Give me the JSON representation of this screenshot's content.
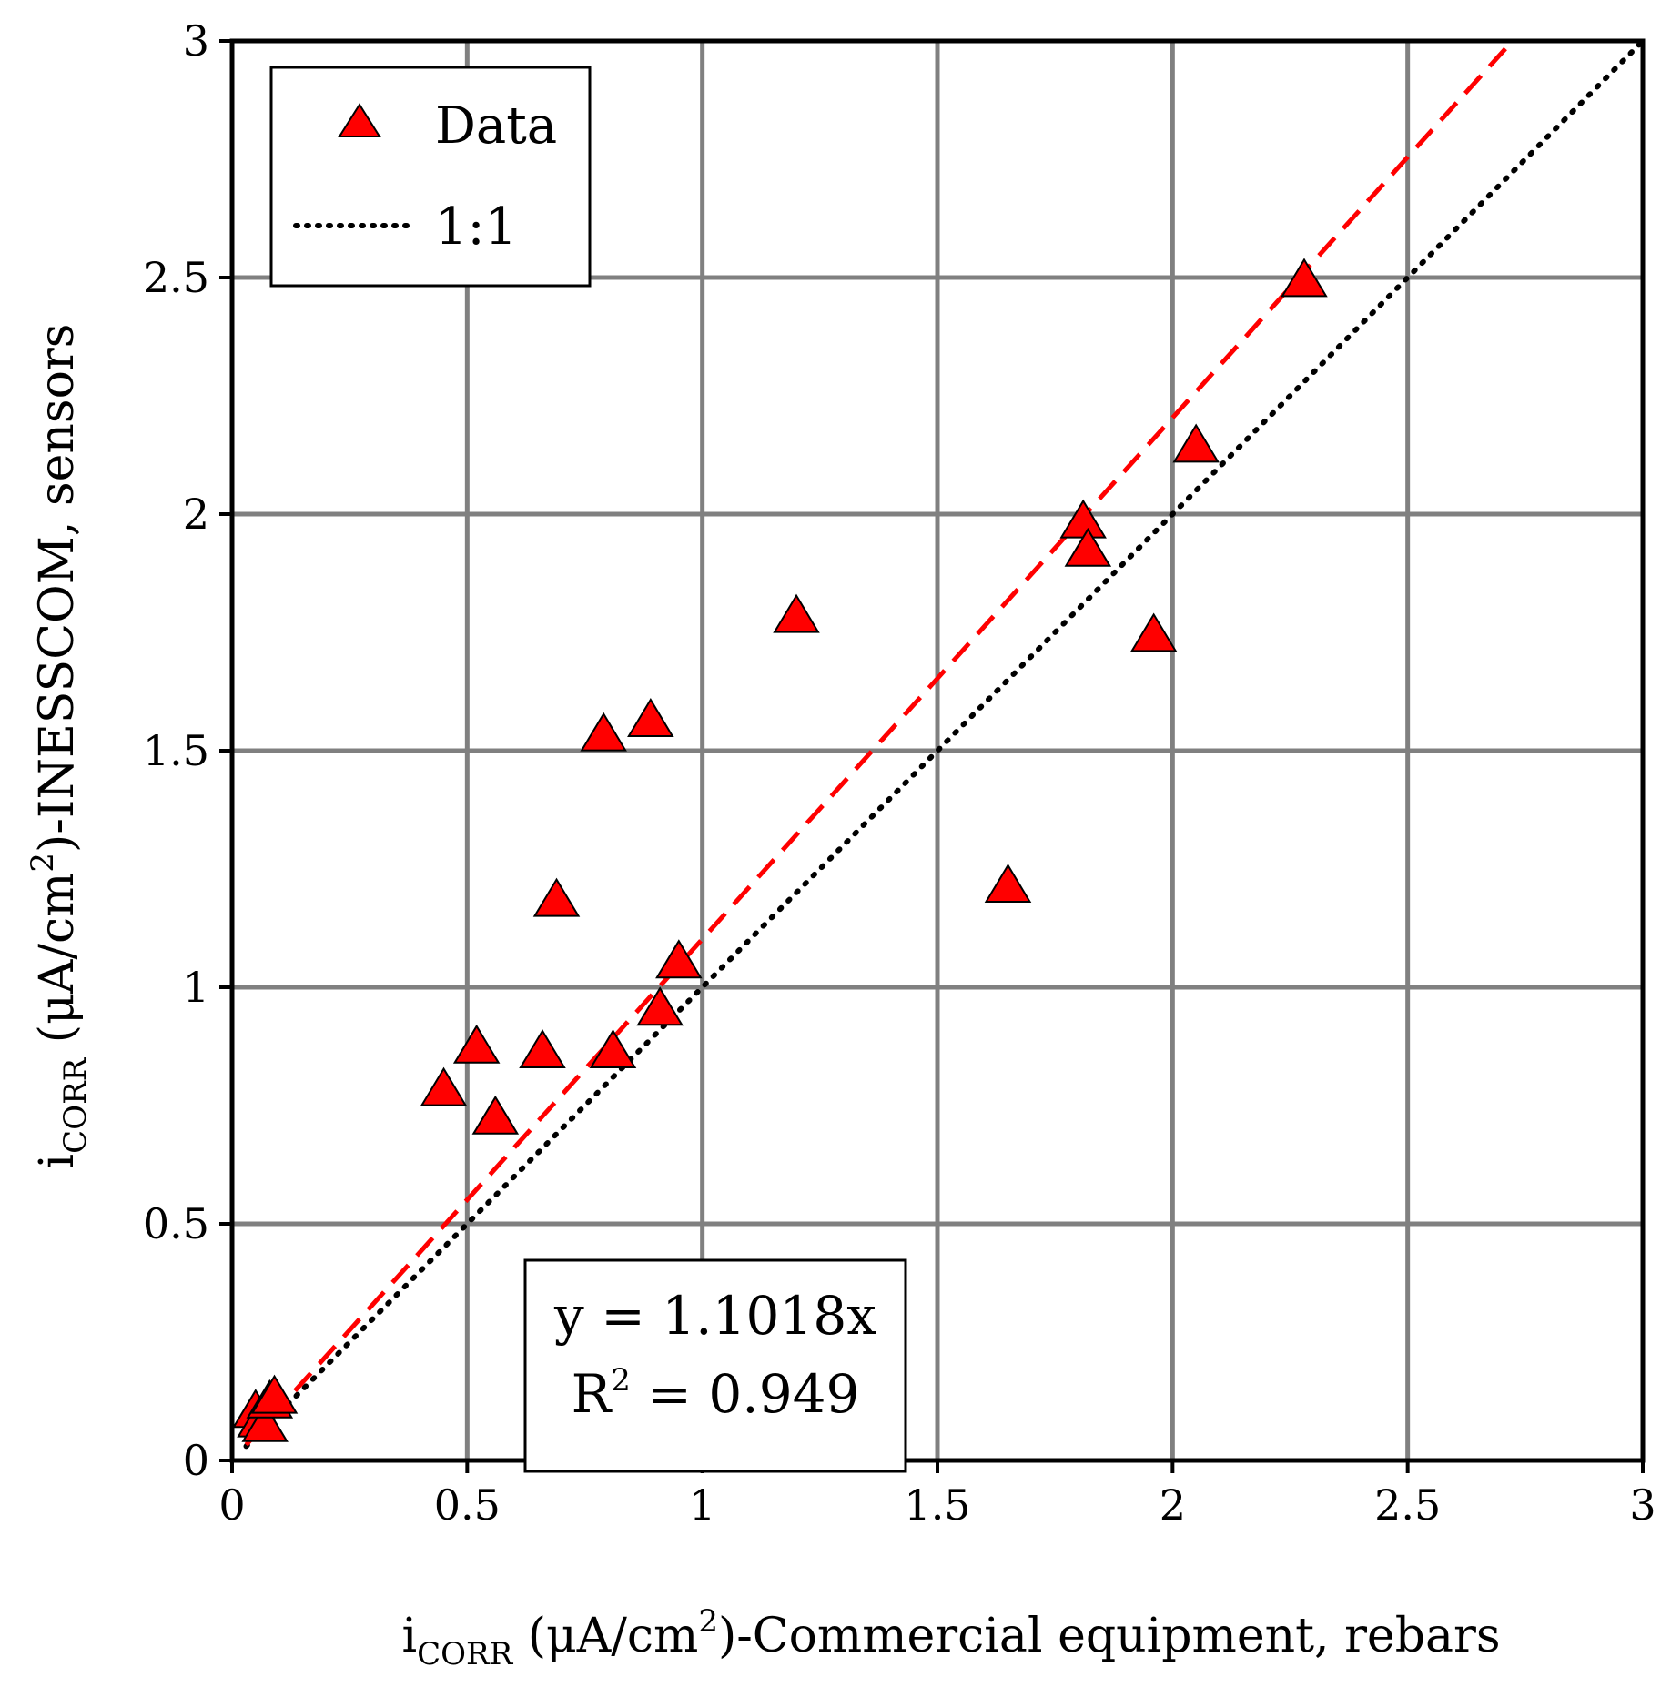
{
  "chart_data": {
    "type": "scatter",
    "xlabel": {
      "main": "i",
      "sub": "CORR",
      "unit_pre": " (μA/cm",
      "sup": "2",
      "unit_post": ")-Commercial equipment, rebars"
    },
    "ylabel": {
      "main": "i",
      "sub": "CORR",
      "unit_pre": " (μA/cm",
      "sup": "2",
      "unit_post": ")-INESSCOM, sensors"
    },
    "xlim": [
      0,
      3
    ],
    "ylim": [
      0,
      3
    ],
    "xticks": [
      0,
      0.5,
      1,
      1.5,
      2,
      2.5,
      3
    ],
    "yticks": [
      0,
      0.5,
      1,
      1.5,
      2,
      2.5,
      3
    ],
    "xtick_labels": [
      "0",
      "0.5",
      "1",
      "1.5",
      "2",
      "2.5",
      "3"
    ],
    "ytick_labels": [
      "0",
      "0.5",
      "1",
      "1.5",
      "2",
      "2.5",
      "3"
    ],
    "grid": true,
    "series": [
      {
        "name": "Data",
        "marker": "triangle",
        "color": "#ff0000",
        "x": [
          0.05,
          0.06,
          0.07,
          0.08,
          0.09,
          0.45,
          0.52,
          0.56,
          0.66,
          0.69,
          0.79,
          0.81,
          0.89,
          0.91,
          0.95,
          1.2,
          1.65,
          1.81,
          1.82,
          1.96,
          2.05,
          2.28
        ],
        "y": [
          0.1,
          0.08,
          0.07,
          0.12,
          0.13,
          0.78,
          0.87,
          0.72,
          0.86,
          1.18,
          1.53,
          0.86,
          1.56,
          0.95,
          1.05,
          1.78,
          1.21,
          1.98,
          1.92,
          1.74,
          2.14,
          2.49
        ]
      },
      {
        "name": "1:1",
        "style": "dotted",
        "color": "#000000",
        "x": [
          0.03,
          3.0
        ],
        "y": [
          0.03,
          3.0
        ]
      },
      {
        "name": "Linear fit",
        "style": "dashed",
        "color": "#ff0000",
        "slope": 1.1018,
        "x": [
          0.03,
          2.72
        ],
        "y": [
          0.033,
          2.997
        ]
      }
    ],
    "legend": {
      "position": "top-left",
      "entries": [
        "Data",
        "1:1"
      ]
    },
    "annotation": {
      "line1": "y = 1.1018x",
      "line2_pre": "R",
      "line2_sup": "2",
      "line2_post": " = 0.949",
      "position": "bottom-center"
    }
  }
}
